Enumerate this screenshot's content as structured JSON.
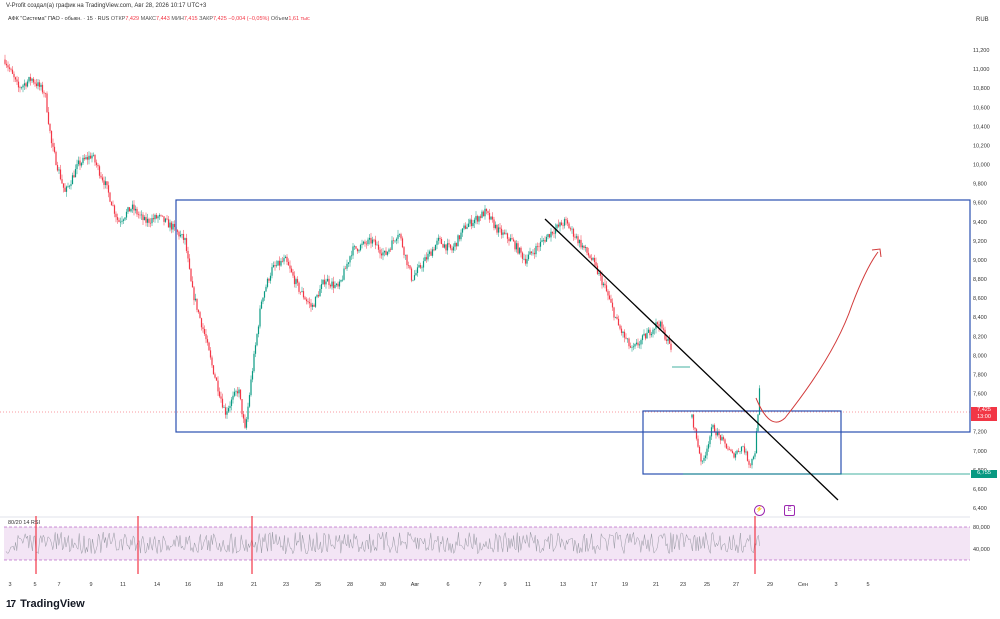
{
  "header": {
    "caption": "V-Profit создал(а) график на TradingView.com, Авг 28, 2026 10:17 UTC+3",
    "symbol": "АФК \"Система\" ПАО - обыкн. · 15 · RUS",
    "open_label": "ОТКР",
    "open_value": "7,429",
    "high_label": "МАКС",
    "high_value": "7,443",
    "low_label": "МИН",
    "low_value": "7,415",
    "close_label": "ЗАКР",
    "close_value": "7,425",
    "change": "−0,004 (−0,05%)",
    "volume_label": "Объем",
    "volume_value": "1,61 тыс"
  },
  "currency": "RUB",
  "price_tag": {
    "price": "7,425",
    "countdown": "13:00"
  },
  "low_tag": "6,755",
  "rsi": {
    "label": "80/20 14 RSI"
  },
  "brand": {
    "logo": "17",
    "name": "TradingView"
  },
  "events": {
    "split_icon": "split-icon",
    "e_label": "E"
  },
  "colors": {
    "up": "#089981",
    "down": "#f23645",
    "box": "#2a4fb0",
    "trend": "#000000",
    "projection": "#d23a3a",
    "rsi_band": "#f3e5f5"
  },
  "chart_data": {
    "type": "candlestick",
    "y_axis": {
      "ticks": [
        "11,200",
        "11,000",
        "10,800",
        "10,600",
        "10,400",
        "10,200",
        "10,000",
        "9,800",
        "9,600",
        "9,400",
        "9,200",
        "9,000",
        "8,800",
        "8,600",
        "8,400",
        "8,200",
        "8,000",
        "7,800",
        "7,600",
        "7,400",
        "7,200",
        "7,000",
        "6,800",
        "6,600",
        "6,400"
      ],
      "range": [
        6400,
        11200
      ]
    },
    "x_axis": {
      "ticks": [
        "3",
        "5",
        "7",
        "9",
        "11",
        "14",
        "16",
        "18",
        "21",
        "23",
        "25",
        "28",
        "30",
        "Авг",
        "6",
        "7",
        "9",
        "11",
        "13",
        "17",
        "19",
        "21",
        "23",
        "25",
        "27",
        "29",
        "Сен",
        "3",
        "5"
      ]
    },
    "rsi_axis": {
      "ticks": [
        "80,000",
        "40,000"
      ]
    },
    "price_path": [
      [
        0,
        11100
      ],
      [
        0.02,
        10800
      ],
      [
        0.04,
        10900
      ],
      [
        0.06,
        10750
      ],
      [
        0.07,
        10200
      ],
      [
        0.09,
        9700
      ],
      [
        0.11,
        10000
      ],
      [
        0.13,
        10100
      ],
      [
        0.15,
        9800
      ],
      [
        0.17,
        9400
      ],
      [
        0.19,
        9550
      ],
      [
        0.21,
        9400
      ],
      [
        0.23,
        9450
      ],
      [
        0.25,
        9350
      ],
      [
        0.27,
        9200
      ],
      [
        0.28,
        8700
      ],
      [
        0.3,
        8200
      ],
      [
        0.31,
        7900
      ],
      [
        0.33,
        7400
      ],
      [
        0.35,
        7650
      ],
      [
        0.36,
        7200
      ],
      [
        0.37,
        7800
      ],
      [
        0.385,
        8600
      ],
      [
        0.4,
        8900
      ],
      [
        0.42,
        9000
      ],
      [
        0.44,
        8700
      ],
      [
        0.46,
        8500
      ],
      [
        0.48,
        8800
      ],
      [
        0.5,
        8700
      ],
      [
        0.52,
        9100
      ],
      [
        0.55,
        9200
      ],
      [
        0.57,
        9050
      ],
      [
        0.59,
        9300
      ],
      [
        0.61,
        8800
      ],
      [
        0.63,
        9000
      ],
      [
        0.65,
        9200
      ],
      [
        0.67,
        9100
      ],
      [
        0.69,
        9350
      ],
      [
        0.71,
        9450
      ],
      [
        0.72,
        9500
      ],
      [
        0.74,
        9300
      ],
      [
        0.76,
        9200
      ],
      [
        0.78,
        9000
      ],
      [
        0.8,
        9150
      ],
      [
        0.82,
        9300
      ],
      [
        0.84,
        9400
      ],
      [
        0.86,
        9200
      ],
      [
        0.88,
        9000
      ],
      [
        0.9,
        8700
      ],
      [
        0.92,
        8300
      ],
      [
        0.94,
        8050
      ],
      [
        0.96,
        8200
      ],
      [
        0.98,
        8350
      ],
      [
        1.0,
        8050
      ]
    ],
    "late_path": [
      [
        0,
        7350
      ],
      [
        0.15,
        6850
      ],
      [
        0.3,
        7250
      ],
      [
        0.45,
        7100
      ],
      [
        0.6,
        6950
      ],
      [
        0.75,
        7050
      ],
      [
        0.85,
        6850
      ],
      [
        0.93,
        7000
      ],
      [
        1.0,
        7700
      ]
    ],
    "resistance_top": 9630,
    "support_level": 7200,
    "range_box_top": 7400,
    "range_box_bottom": 6760,
    "trendline": {
      "from": [
        9350,
        "Авг 11"
      ],
      "to": [
        6500,
        "Авг 29"
      ]
    },
    "projection": {
      "from": 7600,
      "dip": 7250,
      "to": 9100
    },
    "rsi_levels": [
      80,
      40
    ],
    "rsi_spikes": [
      5,
      13,
      21,
      27
    ]
  }
}
